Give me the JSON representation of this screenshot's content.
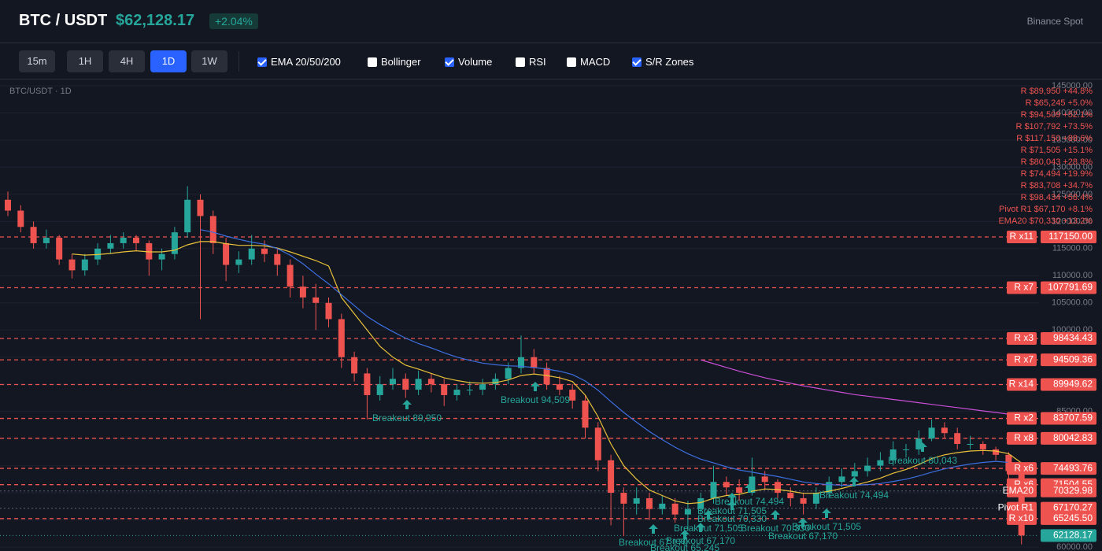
{
  "header": {
    "pair": "BTC / USDT",
    "price": "$62,128.17",
    "change": "+2.04%",
    "exchange": "Binance Spot"
  },
  "toolbar": {
    "timeframes": [
      {
        "label": "15m",
        "active": false
      },
      {
        "label": "1H",
        "active": false
      },
      {
        "label": "4H",
        "active": false
      },
      {
        "label": "1D",
        "active": true
      },
      {
        "label": "1W",
        "active": false
      }
    ],
    "indicators": [
      {
        "label": "EMA 20/50/200",
        "checked": true
      },
      {
        "label": "Bollinger",
        "checked": false
      },
      {
        "label": "Volume",
        "checked": true
      },
      {
        "label": "RSI",
        "checked": false
      },
      {
        "label": "MACD",
        "checked": false
      },
      {
        "label": "S/R Zones",
        "checked": true
      }
    ]
  },
  "chart_data": {
    "type": "candlestick",
    "title": "BTC/USDT · 1D",
    "ylim": [
      60000,
      145000
    ],
    "yticks": [
      {
        "value": 60000,
        "label": "60000.00"
      },
      {
        "value": 65000,
        "label": "65000.00"
      },
      {
        "value": 70000,
        "label": "70000.00"
      },
      {
        "value": 75000,
        "label": "75000.00"
      },
      {
        "value": 80000,
        "label": "80000.00"
      },
      {
        "value": 85000,
        "label": "85000.00"
      },
      {
        "value": 90000,
        "label": "90000.00"
      },
      {
        "value": 95000,
        "label": "95000.00"
      },
      {
        "value": 100000,
        "label": "100000.00"
      },
      {
        "value": 105000,
        "label": "105000.00"
      },
      {
        "value": 110000,
        "label": "110000.00"
      },
      {
        "value": 115000,
        "label": "115000.00"
      },
      {
        "value": 120000,
        "label": "120000.00"
      },
      {
        "value": 125000,
        "label": "125000.00"
      },
      {
        "value": 130000,
        "label": "130000.00"
      },
      {
        "value": 135000,
        "label": "135000.00"
      },
      {
        "value": 140000,
        "label": "140000.00"
      },
      {
        "value": 145000,
        "label": "145000.00"
      }
    ],
    "up_color": "#26a69a",
    "down_color": "#ef5350",
    "ohlc": [
      [
        124000,
        125500,
        121000,
        122000
      ],
      [
        122000,
        123000,
        118000,
        119000
      ],
      [
        119000,
        120000,
        115000,
        116000
      ],
      [
        116000,
        118500,
        115000,
        117000
      ],
      [
        117000,
        117500,
        112000,
        113000
      ],
      [
        113000,
        114000,
        109500,
        111000
      ],
      [
        111000,
        114000,
        110000,
        113000
      ],
      [
        113000,
        116000,
        112000,
        115000
      ],
      [
        115000,
        117500,
        114000,
        116000
      ],
      [
        116000,
        118000,
        115000,
        117000
      ],
      [
        117000,
        117500,
        114500,
        116000
      ],
      [
        116000,
        116500,
        110000,
        113000
      ],
      [
        113000,
        115000,
        111000,
        114000
      ],
      [
        114000,
        119000,
        113000,
        118000
      ],
      [
        118000,
        126500,
        117000,
        124000
      ],
      [
        124000,
        125000,
        102000,
        121000
      ],
      [
        121000,
        122000,
        114000,
        116000
      ],
      [
        116000,
        117000,
        109000,
        112000
      ],
      [
        112000,
        114500,
        110500,
        113000
      ],
      [
        113000,
        117500,
        112000,
        115000
      ],
      [
        115000,
        116500,
        112500,
        114000
      ],
      [
        114000,
        115000,
        110000,
        112000
      ],
      [
        112000,
        113000,
        106000,
        108000
      ],
      [
        108000,
        110000,
        104000,
        106000
      ],
      [
        106000,
        108500,
        100000,
        105000
      ],
      [
        105000,
        106000,
        100500,
        102000
      ],
      [
        102000,
        103000,
        93000,
        95000
      ],
      [
        95000,
        96000,
        90500,
        92000
      ],
      [
        92000,
        93000,
        83500,
        88000
      ],
      [
        88000,
        91500,
        87000,
        90000
      ],
      [
        90000,
        93000,
        89000,
        91000
      ],
      [
        91000,
        92000,
        87500,
        89000
      ],
      [
        89000,
        92500,
        88000,
        91000
      ],
      [
        91000,
        92000,
        88500,
        90000
      ],
      [
        90000,
        91000,
        86000,
        88000
      ],
      [
        88000,
        90000,
        87000,
        89000
      ],
      [
        89000,
        90500,
        88000,
        89000
      ],
      [
        89000,
        91000,
        88000,
        90000
      ],
      [
        90000,
        92000,
        89000,
        91000
      ],
      [
        91000,
        94000,
        90000,
        93000
      ],
      [
        93000,
        99000,
        92000,
        95000
      ],
      [
        95000,
        96500,
        92000,
        93000
      ],
      [
        93000,
        94000,
        89000,
        90000
      ],
      [
        90000,
        91500,
        88000,
        89000
      ],
      [
        89000,
        90000,
        85500,
        87000
      ],
      [
        87000,
        88000,
        80000,
        82000
      ],
      [
        82000,
        83000,
        74000,
        76000
      ],
      [
        76000,
        77000,
        64000,
        70000
      ],
      [
        70000,
        71000,
        62000,
        68000
      ],
      [
        68000,
        71000,
        66000,
        69000
      ],
      [
        69000,
        70000,
        65000,
        67000
      ],
      [
        67000,
        69500,
        66000,
        68000
      ],
      [
        68000,
        69000,
        64500,
        66000
      ],
      [
        66000,
        68500,
        63000,
        67000
      ],
      [
        67000,
        70000,
        66000,
        69000
      ],
      [
        69000,
        75000,
        68000,
        72000
      ],
      [
        72000,
        73000,
        69500,
        71000
      ],
      [
        71000,
        72500,
        68500,
        70000
      ],
      [
        70000,
        76500,
        69500,
        73000
      ],
      [
        73000,
        74000,
        70500,
        72000
      ],
      [
        72000,
        72500,
        69000,
        70000
      ],
      [
        70000,
        71000,
        67500,
        69000
      ],
      [
        69000,
        70000,
        66000,
        68000
      ],
      [
        68000,
        71000,
        67000,
        70000
      ],
      [
        70000,
        73000,
        69000,
        72000
      ],
      [
        72000,
        74500,
        71000,
        73000
      ],
      [
        73000,
        75500,
        72000,
        74000
      ],
      [
        74000,
        76500,
        73000,
        75000
      ],
      [
        75000,
        77500,
        74000,
        76000
      ],
      [
        76000,
        79500,
        75000,
        78000
      ],
      [
        78000,
        79000,
        76500,
        78000
      ],
      [
        78000,
        81500,
        77000,
        80000
      ],
      [
        80000,
        83500,
        79500,
        82000
      ],
      [
        82000,
        83000,
        80000,
        81000
      ],
      [
        81000,
        82000,
        78000,
        79000
      ],
      [
        79000,
        80500,
        78000,
        79000
      ],
      [
        79000,
        79500,
        77000,
        78000
      ],
      [
        78000,
        78500,
        76000,
        77000
      ],
      [
        77000,
        77500,
        72000,
        74000
      ],
      [
        74000,
        74500,
        60500,
        62128.17
      ]
    ],
    "lines": [
      {
        "color": "#e9c23a",
        "values": [
          null,
          null,
          null,
          null,
          null,
          114000,
          113800,
          113900,
          114100,
          114400,
          114600,
          114400,
          114400,
          114700,
          115700,
          116300,
          116300,
          115900,
          115600,
          115600,
          115500,
          115100,
          114400,
          113600,
          112800,
          111800,
          106000,
          103000,
          100000,
          97000,
          95000,
          93500,
          92800,
          92000,
          91200,
          90700,
          90300,
          90200,
          90300,
          90800,
          91600,
          91900,
          91600,
          91200,
          90500,
          88000,
          84000,
          79000,
          75000,
          72500,
          70500,
          69500,
          68500,
          68000,
          68200,
          69000,
          69500,
          69700,
          70300,
          70700,
          70600,
          70300,
          69900,
          69900,
          70300,
          70800,
          71400,
          72000,
          72700,
          73600,
          74300,
          75200,
          76300,
          77000,
          77400,
          77700,
          77800,
          77700,
          77200,
          75500
        ]
      },
      {
        "color": "#3d6fe0",
        "values": [
          null,
          null,
          null,
          null,
          null,
          null,
          null,
          null,
          null,
          null,
          null,
          null,
          null,
          null,
          null,
          118500,
          118000,
          117300,
          116700,
          116200,
          115800,
          115000,
          113800,
          112200,
          110300,
          108500,
          106500,
          104500,
          102500,
          101000,
          99700,
          98500,
          97500,
          96700,
          95800,
          95000,
          94400,
          93900,
          93600,
          93400,
          93300,
          93100,
          92800,
          92400,
          91800,
          90600,
          88900,
          86800,
          84800,
          83000,
          81300,
          79800,
          78400,
          77200,
          76200,
          75500,
          74800,
          74200,
          73800,
          73400,
          73000,
          72500,
          72000,
          71700,
          71500,
          71400,
          71400,
          71500,
          71700,
          72100,
          72500,
          73100,
          73800,
          74400,
          74900,
          75300,
          75600,
          75800,
          75600,
          74600
        ]
      },
      {
        "color": "#c94fd6",
        "values": [
          null,
          null,
          null,
          null,
          null,
          null,
          null,
          null,
          null,
          null,
          null,
          null,
          null,
          null,
          null,
          null,
          null,
          null,
          null,
          null,
          null,
          null,
          null,
          null,
          null,
          null,
          null,
          null,
          null,
          null,
          null,
          null,
          null,
          null,
          null,
          null,
          null,
          null,
          null,
          null,
          null,
          null,
          null,
          null,
          null,
          null,
          null,
          null,
          null,
          null,
          null,
          null,
          null,
          null,
          94500,
          93800,
          93100,
          92400,
          91800,
          91200,
          90700,
          90200,
          89700,
          89300,
          88900,
          88500,
          88100,
          87800,
          87500,
          87200,
          86900,
          86600,
          86300,
          86000,
          85700,
          85400,
          85100,
          84800,
          84500,
          84100
        ]
      }
    ],
    "levels": [
      {
        "name": "R x11",
        "value": 117150,
        "label": "117150.00",
        "kind": "resistance"
      },
      {
        "name": "R x7",
        "value": 107791.69,
        "label": "107791.69",
        "kind": "resistance"
      },
      {
        "name": "R x3",
        "value": 98434.43,
        "label": "98434.43",
        "kind": "resistance"
      },
      {
        "name": "R x7",
        "value": 94509.36,
        "label": "94509.36",
        "kind": "resistance"
      },
      {
        "name": "R x14",
        "value": 89949.62,
        "label": "89949.62",
        "kind": "resistance"
      },
      {
        "name": "R x2",
        "value": 83707.59,
        "label": "83707.59",
        "kind": "resistance"
      },
      {
        "name": "R x8",
        "value": 80042.83,
        "label": "80042.83",
        "kind": "resistance"
      },
      {
        "name": "R x6",
        "value": 74493.76,
        "label": "74493.76",
        "kind": "resistance"
      },
      {
        "name": "R x6",
        "value": 71504.55,
        "label": "71504.55",
        "kind": "resistance"
      },
      {
        "name": "EMA20",
        "value": 70329.98,
        "label": "70329.98",
        "kind": "indicator"
      },
      {
        "name": "Pivot R1",
        "value": 67170.27,
        "label": "67170.27",
        "kind": "indicator"
      },
      {
        "name": "R x10",
        "value": 65245.5,
        "label": "65245.50",
        "kind": "resistance"
      }
    ],
    "last": 62128.17,
    "level_list": [
      "R $89,950 +44.8%",
      "R $65,245 +5.0%",
      "R $94,509 +52.1%",
      "R $107,792 +73.5%",
      "R $117,150 +88.6%",
      "R $71,505 +15.1%",
      "R $80,043 +28.8%",
      "R $74,494 +19.9%",
      "R $83,708 +34.7%",
      "R $98,434 +58.4%",
      "Pivot R1 $67,170 +8.1%",
      "EMA20 $70,330 +13.2%"
    ],
    "annotations": [
      "Breakout 89,950",
      "Breakout 94,509",
      "Breakout 80,043",
      "Breakout 74,494",
      "Breakout 74,494",
      "Breakout 71,505",
      "Breakout 70,330",
      "Breakout 71,505",
      "Breakout 70,330",
      "Breakout 67,170",
      "Breakout 71,505",
      "Breakout 67,170",
      "Breakout 65,245",
      "Breakout 67,170"
    ]
  }
}
